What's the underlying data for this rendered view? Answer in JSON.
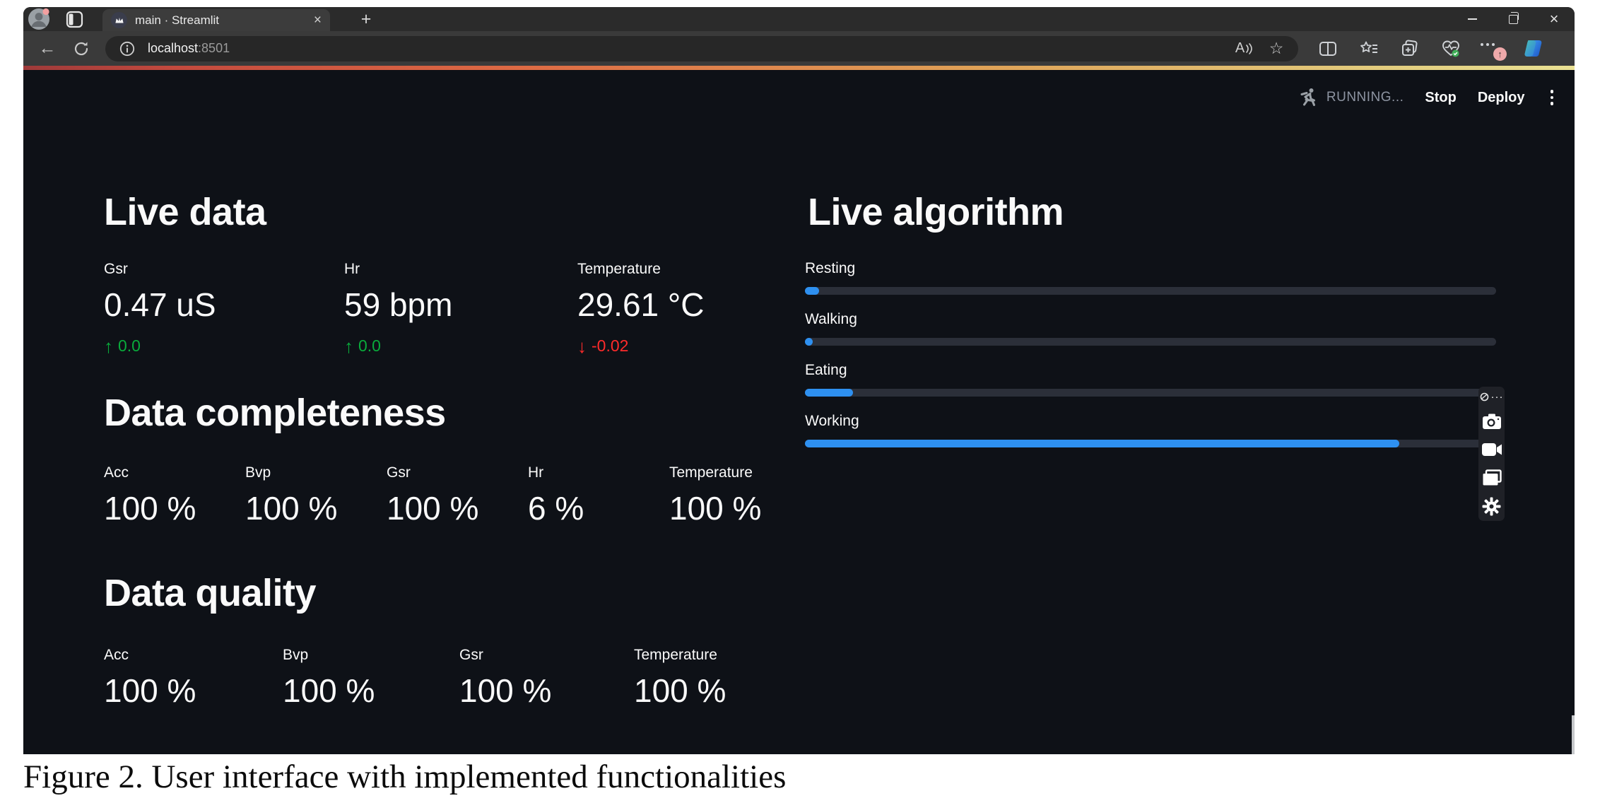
{
  "browser": {
    "tab_title": "main · Streamlit",
    "url_host": "localhost",
    "url_port": ":8501"
  },
  "icons": {
    "back": "←",
    "star": "☆",
    "tab_close": "×",
    "window_close": "×",
    "new_tab": "+",
    "read_aloud": "A",
    "badge_up": "↑",
    "capture_dots": "···",
    "delta_up": "↑",
    "delta_down": "↓"
  },
  "streamlit_toolbar": {
    "status": "RUNNING...",
    "stop": "Stop",
    "deploy": "Deploy"
  },
  "app": {
    "live_data": {
      "title": "Live data",
      "metrics": [
        {
          "label": "Gsr",
          "value": "0.47 uS",
          "delta": "0.0",
          "direction": "up"
        },
        {
          "label": "Hr",
          "value": "59 bpm",
          "delta": "0.0",
          "direction": "up"
        },
        {
          "label": "Temperature",
          "value": "29.61 °C",
          "delta": "-0.02",
          "direction": "down"
        }
      ]
    },
    "data_completeness": {
      "title": "Data completeness",
      "metrics": [
        {
          "label": "Acc",
          "value": "100 %"
        },
        {
          "label": "Bvp",
          "value": "100 %"
        },
        {
          "label": "Gsr",
          "value": "100 %"
        },
        {
          "label": "Hr",
          "value": "6 %"
        },
        {
          "label": "Temperature",
          "value": "100 %"
        }
      ]
    },
    "data_quality": {
      "title": "Data quality",
      "metrics": [
        {
          "label": "Acc",
          "value": "100 %"
        },
        {
          "label": "Bvp",
          "value": "100 %"
        },
        {
          "label": "Gsr",
          "value": "100 %"
        },
        {
          "label": "Temperature",
          "value": "100 %"
        }
      ]
    },
    "live_algorithm": {
      "title": "Live algorithm",
      "bars": [
        {
          "label": "Resting",
          "percent": 2
        },
        {
          "label": "Walking",
          "percent": 1
        },
        {
          "label": "Eating",
          "percent": 7
        },
        {
          "label": "Working",
          "percent": 86
        }
      ]
    }
  },
  "colors": {
    "app_background": "#0e1117",
    "accent_blue": "#2e90f0",
    "delta_up_green": "#09ab3b",
    "delta_down_red": "#ff2b2b",
    "decoration_gradient_left": "#9e3a3a",
    "decoration_gradient_right": "#eae193"
  },
  "figure": {
    "caption": "Figure 2. User interface with implemented functionalities"
  }
}
